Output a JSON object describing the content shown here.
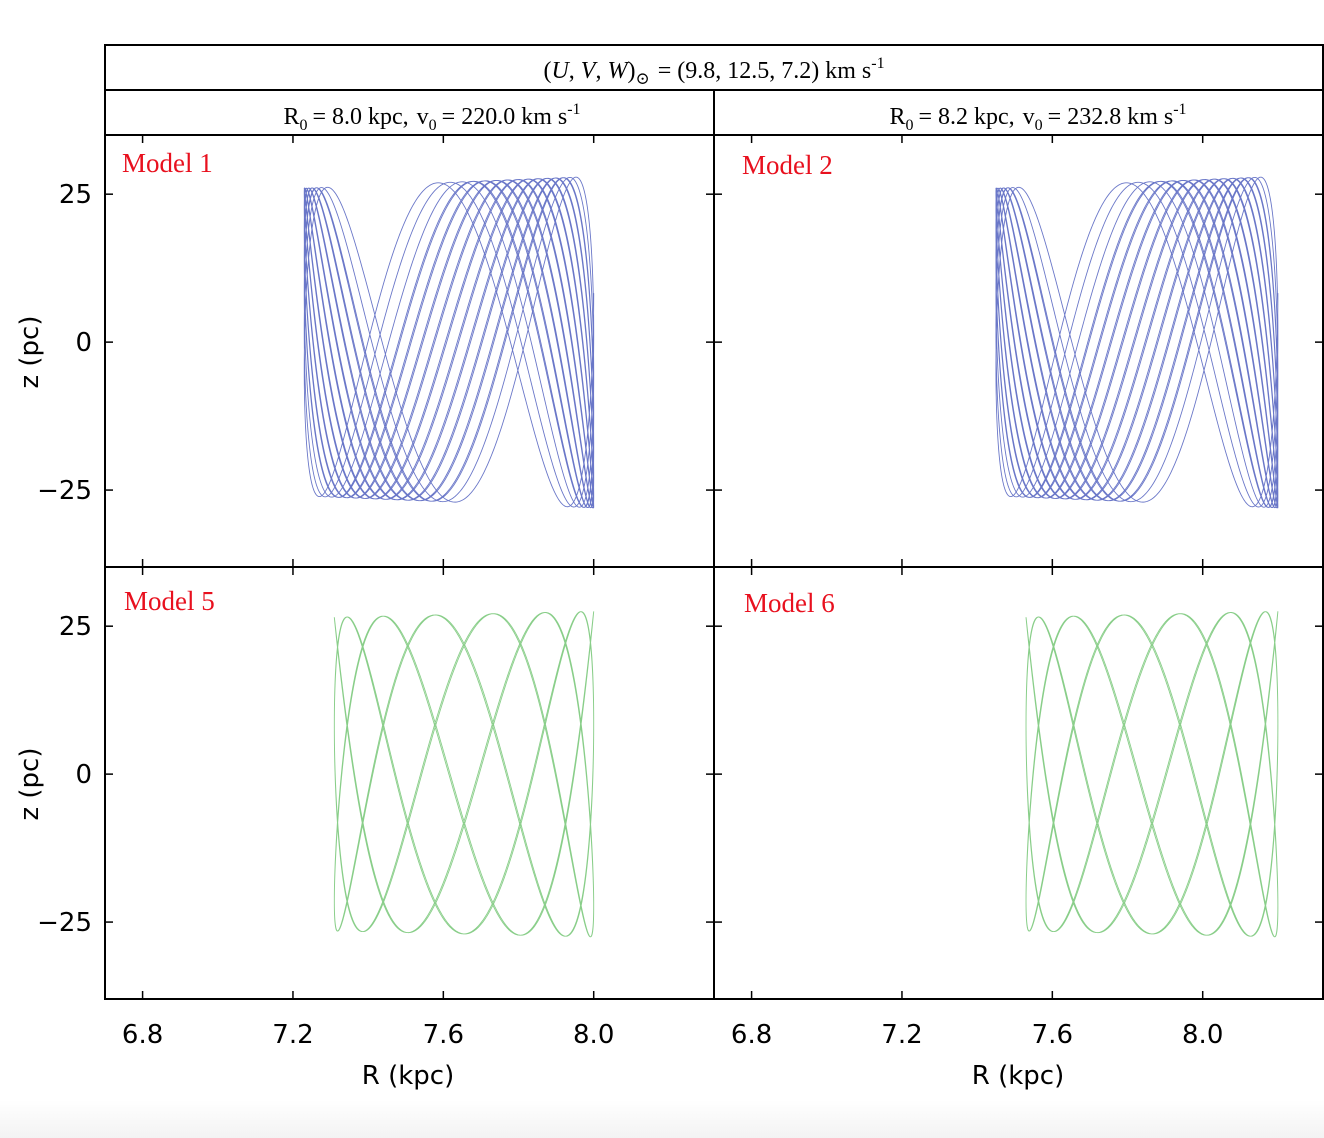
{
  "chart_data": {
    "type": "line",
    "header": {
      "prefix": "(",
      "symbols": [
        "U",
        "V",
        "W"
      ],
      "suffix": ")",
      "sun_symbol": "⊙",
      "values": "= (9.8, 12.5, 7.2) km s",
      "exponent": "-1"
    },
    "columns": [
      {
        "r_label": "R",
        "r_sub": "0",
        "r_value": "= 8.0 kpc,",
        "v_label": "v",
        "v_sub": "0",
        "v_value": "= 220.0 km s",
        "exp": "-1"
      },
      {
        "r_label": "R",
        "r_sub": "0",
        "r_value": "= 8.2 kpc,",
        "v_label": "v",
        "v_sub": "0",
        "v_value": "= 232.8 km s",
        "exp": "-1"
      }
    ],
    "xlabel": "R (kpc)",
    "ylabel": "z (pc)",
    "xlim": [
      6.7,
      8.32
    ],
    "ylim": [
      -38,
      35
    ],
    "xticks": [
      "6.8",
      "7.2",
      "7.6",
      "8.0"
    ],
    "xtick_values": [
      6.8,
      7.2,
      7.6,
      8.0
    ],
    "yticks": [
      "25",
      "0",
      "−25"
    ],
    "ytick_values": [
      25,
      0,
      -25
    ],
    "panels": [
      {
        "label": "Model 1",
        "color": "#5a68c2",
        "r_min": 7.23,
        "r_max": 8.0,
        "z_left": 26.0,
        "z_right": 28.0,
        "radial_periods": 12.5,
        "vertical_periods": 38
      },
      {
        "label": "Model 2",
        "color": "#5a68c2",
        "r_min": 7.45,
        "r_max": 8.2,
        "z_left": 26.0,
        "z_right": 28.0,
        "radial_periods": 12.5,
        "vertical_periods": 38
      },
      {
        "label": "Model 5",
        "color": "#7cc97c",
        "r_min": 7.31,
        "r_max": 8.0,
        "z_left": 26.5,
        "z_right": 27.5,
        "radial_periods": 7.5,
        "vertical_periods": 21
      },
      {
        "label": "Model 6",
        "color": "#7cc97c",
        "r_min": 7.53,
        "r_max": 8.2,
        "z_left": 26.5,
        "z_right": 27.5,
        "radial_periods": 7.5,
        "vertical_periods": 21
      }
    ],
    "label_color": "#e8101e"
  }
}
